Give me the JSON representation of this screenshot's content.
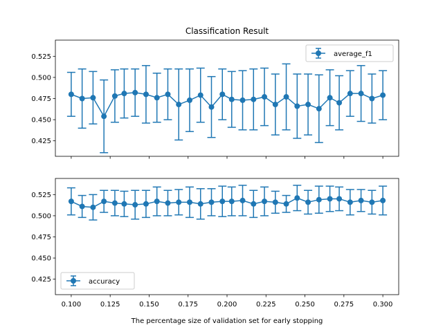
{
  "chart_data": [
    {
      "type": "errorbar",
      "title": "Classification Result",
      "xlabel": "",
      "ylabel": "",
      "color": "#1f77b4",
      "legend": {
        "label": "average_f1",
        "position": "upper right"
      },
      "xlim": [
        0.08983,
        0.31017
      ],
      "ylim": [
        0.4067,
        0.5441
      ],
      "yticks": [
        0.425,
        0.45,
        0.475,
        0.5,
        0.525
      ],
      "ytick_labels": [
        "0.425",
        "0.450",
        "0.475",
        "0.500",
        "0.525"
      ],
      "xticks": [
        0.1,
        0.125,
        0.15,
        0.175,
        0.2,
        0.225,
        0.25,
        0.275,
        0.3
      ],
      "xtick_labels": [],
      "x": [
        0.1,
        0.107,
        0.114,
        0.121,
        0.128,
        0.134,
        0.141,
        0.148,
        0.155,
        0.162,
        0.169,
        0.176,
        0.183,
        0.19,
        0.197,
        0.203,
        0.21,
        0.217,
        0.224,
        0.231,
        0.238,
        0.245,
        0.252,
        0.259,
        0.266,
        0.272,
        0.279,
        0.286,
        0.293,
        0.3
      ],
      "y": [
        0.48,
        0.475,
        0.476,
        0.454,
        0.478,
        0.481,
        0.482,
        0.48,
        0.476,
        0.48,
        0.468,
        0.473,
        0.479,
        0.465,
        0.48,
        0.474,
        0.473,
        0.474,
        0.477,
        0.468,
        0.477,
        0.466,
        0.468,
        0.463,
        0.476,
        0.47,
        0.481,
        0.481,
        0.475,
        0.479
      ],
      "yerr": [
        0.026,
        0.035,
        0.031,
        0.043,
        0.031,
        0.029,
        0.028,
        0.034,
        0.029,
        0.03,
        0.042,
        0.037,
        0.032,
        0.036,
        0.03,
        0.033,
        0.035,
        0.036,
        0.034,
        0.036,
        0.039,
        0.038,
        0.036,
        0.04,
        0.033,
        0.032,
        0.027,
        0.033,
        0.029,
        0.029
      ]
    },
    {
      "type": "errorbar",
      "title": "",
      "xlabel": "The percentage size of validation set for early stopping",
      "ylabel": "",
      "color": "#1f77b4",
      "legend": {
        "label": "accuracy",
        "position": "lower left"
      },
      "xlim": [
        0.08983,
        0.31017
      ],
      "ylim": [
        0.4067,
        0.5441
      ],
      "yticks": [
        0.425,
        0.45,
        0.475,
        0.5,
        0.525
      ],
      "ytick_labels": [
        "0.425",
        "0.450",
        "0.475",
        "0.500",
        "0.525"
      ],
      "xticks": [
        0.1,
        0.125,
        0.15,
        0.175,
        0.2,
        0.225,
        0.25,
        0.275,
        0.3
      ],
      "xtick_labels": [
        "0.100",
        "0.125",
        "0.150",
        "0.175",
        "0.200",
        "0.225",
        "0.250",
        "0.275",
        "0.300"
      ],
      "x": [
        0.1,
        0.107,
        0.114,
        0.121,
        0.128,
        0.134,
        0.141,
        0.148,
        0.155,
        0.162,
        0.169,
        0.176,
        0.183,
        0.19,
        0.197,
        0.203,
        0.21,
        0.217,
        0.224,
        0.231,
        0.238,
        0.245,
        0.252,
        0.259,
        0.266,
        0.272,
        0.279,
        0.286,
        0.293,
        0.3
      ],
      "y": [
        0.517,
        0.511,
        0.51,
        0.517,
        0.515,
        0.514,
        0.513,
        0.514,
        0.517,
        0.515,
        0.516,
        0.516,
        0.514,
        0.516,
        0.517,
        0.517,
        0.518,
        0.514,
        0.517,
        0.516,
        0.514,
        0.521,
        0.516,
        0.519,
        0.52,
        0.52,
        0.516,
        0.518,
        0.516,
        0.518
      ],
      "yerr": [
        0.016,
        0.013,
        0.015,
        0.013,
        0.015,
        0.015,
        0.017,
        0.016,
        0.017,
        0.015,
        0.015,
        0.018,
        0.018,
        0.016,
        0.018,
        0.017,
        0.018,
        0.016,
        0.017,
        0.013,
        0.01,
        0.015,
        0.014,
        0.016,
        0.015,
        0.014,
        0.015,
        0.013,
        0.014,
        0.017
      ]
    }
  ]
}
